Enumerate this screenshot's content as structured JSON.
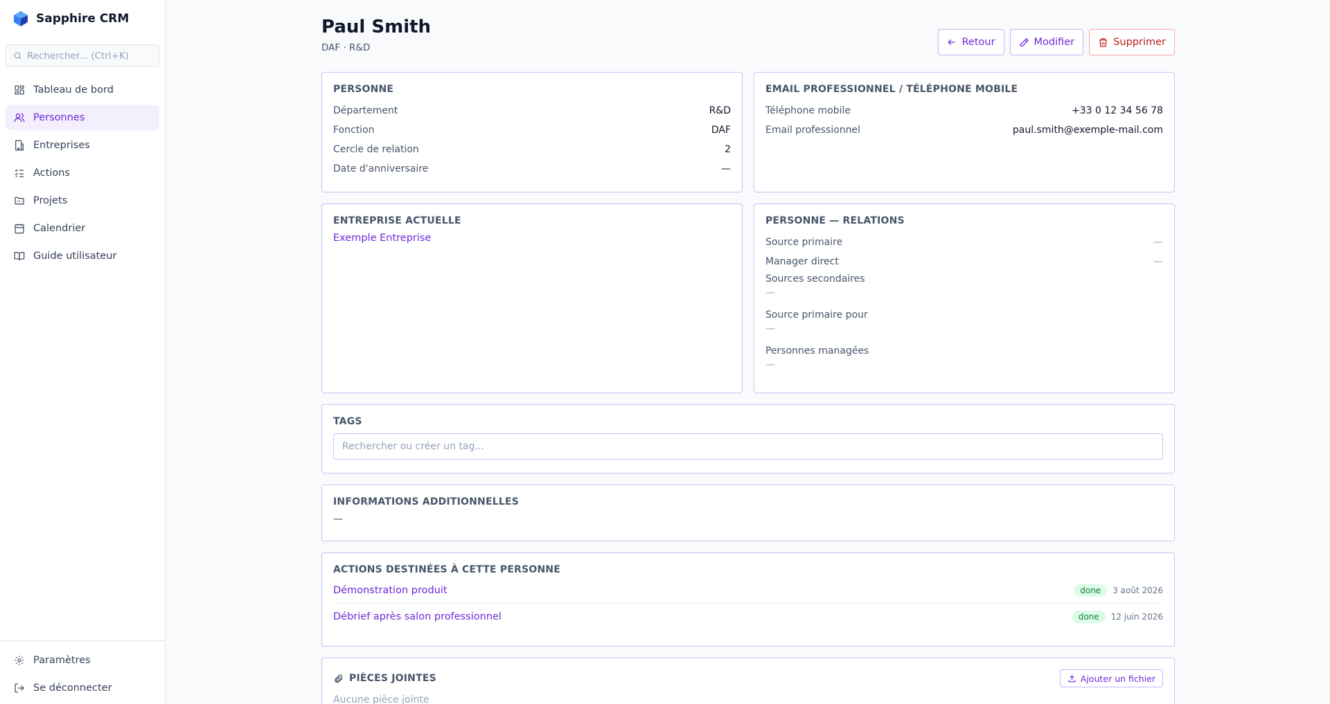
{
  "app": {
    "name": "Sapphire CRM"
  },
  "search": {
    "placeholder": "Rechercher... (Ctrl+K)"
  },
  "nav": {
    "items": [
      {
        "label": "Tableau de bord",
        "icon": "dashboard-icon"
      },
      {
        "label": "Personnes",
        "icon": "users-icon",
        "active": true
      },
      {
        "label": "Entreprises",
        "icon": "building-icon"
      },
      {
        "label": "Actions",
        "icon": "checklist-icon"
      },
      {
        "label": "Projets",
        "icon": "folder-icon"
      },
      {
        "label": "Calendrier",
        "icon": "calendar-icon"
      },
      {
        "label": "Guide utilisateur",
        "icon": "book-icon"
      }
    ],
    "bottom": [
      {
        "label": "Paramètres",
        "icon": "gear-icon"
      },
      {
        "label": "Se déconnecter",
        "icon": "logout-icon"
      }
    ]
  },
  "header": {
    "title": "Paul Smith",
    "subtitle": "DAF · R&D",
    "buttons": {
      "back": "Retour",
      "edit": "Modifier",
      "delete": "Supprimer"
    }
  },
  "person": {
    "title": "PERSONNE",
    "rows": [
      {
        "label": "Département",
        "value": "R&D"
      },
      {
        "label": "Fonction",
        "value": "DAF"
      },
      {
        "label": "Cercle de relation",
        "value": "2"
      },
      {
        "label": "Date d'anniversaire",
        "value": "—"
      }
    ]
  },
  "contact": {
    "title": "EMAIL PROFESSIONNEL / TÉLÉPHONE MOBILE",
    "rows": [
      {
        "label": "Téléphone mobile",
        "value": "+33 0 12 34 56 78"
      },
      {
        "label": "Email professionnel",
        "value": "paul.smith@exemple-mail.com"
      }
    ]
  },
  "company": {
    "title": "ENTREPRISE ACTUELLE",
    "name": "Exemple Entreprise"
  },
  "relations": {
    "title": "PERSONNE — RELATIONS",
    "rows": [
      {
        "label": "Source primaire",
        "value": "—"
      },
      {
        "label": "Manager direct",
        "value": "—"
      }
    ],
    "stacked": [
      {
        "label": "Sources secondaires",
        "value": "—"
      },
      {
        "label": "Source primaire pour",
        "value": "—"
      },
      {
        "label": "Personnes managées",
        "value": "—"
      }
    ]
  },
  "tags": {
    "title": "TAGS",
    "placeholder": "Rechercher ou créer un tag..."
  },
  "additional": {
    "title": "INFORMATIONS ADDITIONNELLES",
    "value": "—"
  },
  "actions": {
    "title": "ACTIONS DESTINÉES À CETTE PERSONNE",
    "items": [
      {
        "title": "Démonstration produit",
        "status": "done",
        "date": "3 août 2026"
      },
      {
        "title": "Débrief après salon professionnel",
        "status": "done",
        "date": "12 juin 2026"
      }
    ]
  },
  "attachments": {
    "title": "PIÈCES JOINTES",
    "add_label": "Ajouter un fichier",
    "empty": "Aucune pièce jointe"
  },
  "colors": {
    "accent": "#6d28d9",
    "danger": "#b91c1c",
    "border": "#c7c3f1",
    "success_bg": "#dcfce7"
  }
}
